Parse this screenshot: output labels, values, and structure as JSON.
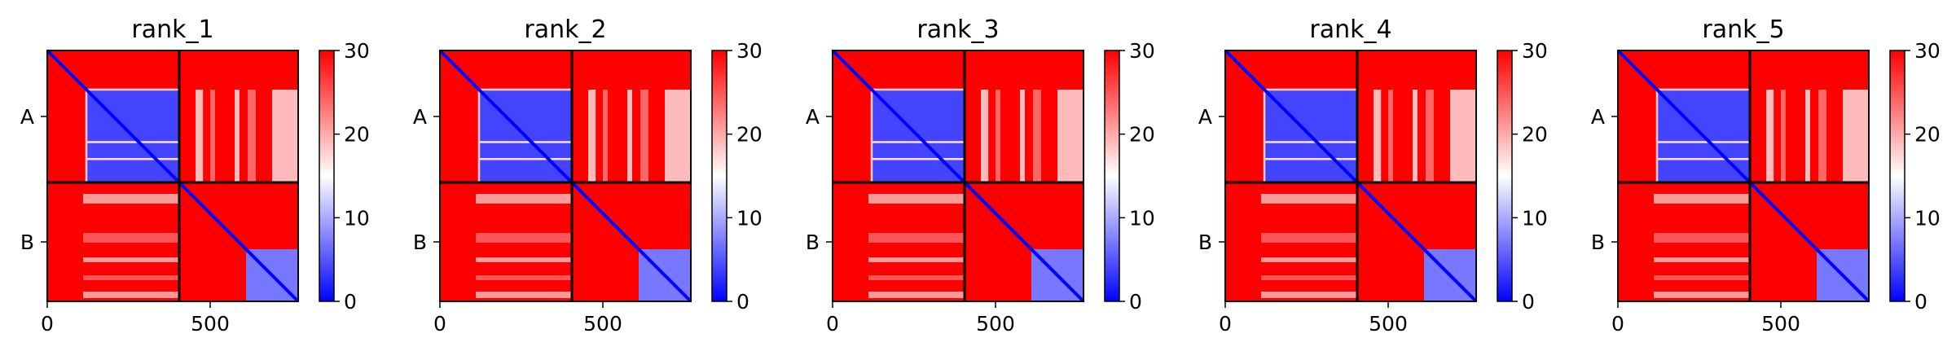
{
  "figure": {
    "panel_count": 5
  },
  "colormap": {
    "name": "bwr",
    "low_color": "#0000ff",
    "mid_color": "#ffffff",
    "high_color": "#ff0000",
    "range": [
      0,
      30
    ]
  },
  "chart_data": [
    {
      "type": "heatmap",
      "title": "rank_1",
      "x_ticks": [
        0,
        500
      ],
      "chain_labels": [
        "A",
        "B"
      ],
      "colorbar_ticks": [
        0,
        10,
        20,
        30
      ],
      "xlim": [
        0,
        770
      ],
      "chain_boundary": 405,
      "value_range": [
        0,
        30
      ]
    },
    {
      "type": "heatmap",
      "title": "rank_2",
      "x_ticks": [
        0,
        500
      ],
      "chain_labels": [
        "A",
        "B"
      ],
      "colorbar_ticks": [
        0,
        10,
        20,
        30
      ],
      "xlim": [
        0,
        770
      ],
      "chain_boundary": 405,
      "value_range": [
        0,
        30
      ]
    },
    {
      "type": "heatmap",
      "title": "rank_3",
      "x_ticks": [
        0,
        500
      ],
      "chain_labels": [
        "A",
        "B"
      ],
      "colorbar_ticks": [
        0,
        10,
        20,
        30
      ],
      "xlim": [
        0,
        770
      ],
      "chain_boundary": 405,
      "value_range": [
        0,
        30
      ]
    },
    {
      "type": "heatmap",
      "title": "rank_4",
      "x_ticks": [
        0,
        500
      ],
      "chain_labels": [
        "A",
        "B"
      ],
      "colorbar_ticks": [
        0,
        10,
        20,
        30
      ],
      "xlim": [
        0,
        770
      ],
      "chain_boundary": 405,
      "value_range": [
        0,
        30
      ]
    },
    {
      "type": "heatmap",
      "title": "rank_5",
      "x_ticks": [
        0,
        500
      ],
      "chain_labels": [
        "A",
        "B"
      ],
      "colorbar_ticks": [
        0,
        10,
        20,
        30
      ],
      "xlim": [
        0,
        770
      ],
      "chain_boundary": 405,
      "value_range": [
        0,
        30
      ]
    }
  ]
}
